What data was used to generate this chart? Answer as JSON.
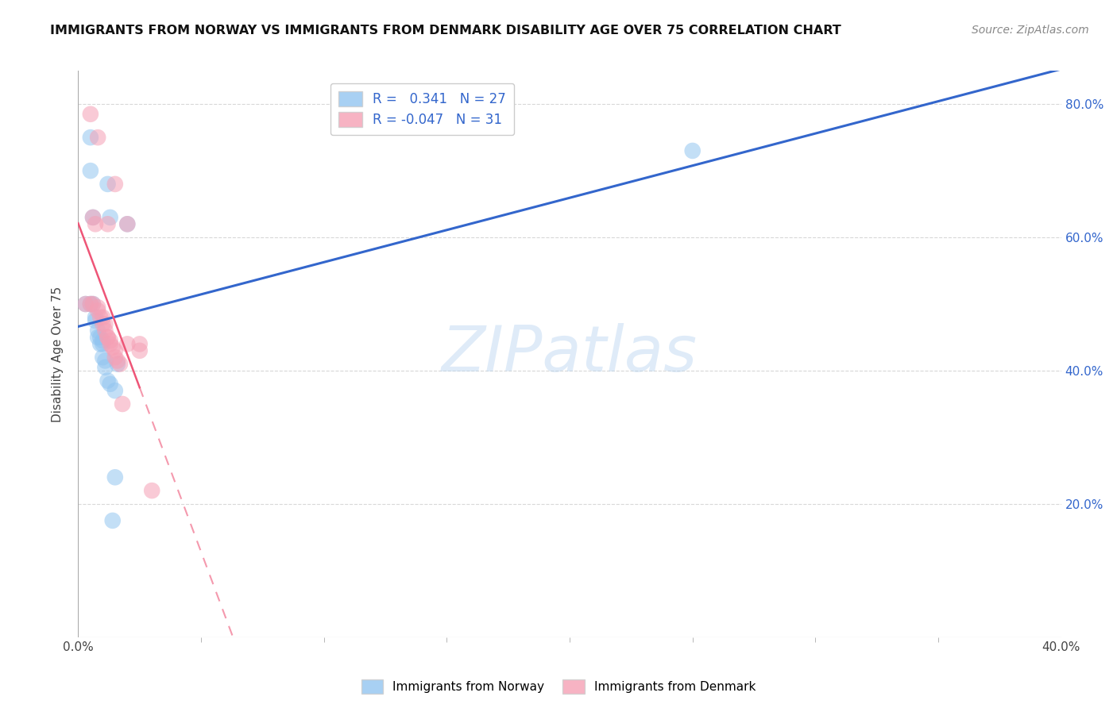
{
  "title": "IMMIGRANTS FROM NORWAY VS IMMIGRANTS FROM DENMARK DISABILITY AGE OVER 75 CORRELATION CHART",
  "source": "Source: ZipAtlas.com",
  "ylabel": "Disability Age Over 75",
  "xlim": [
    0.0,
    0.4
  ],
  "ylim": [
    0.0,
    0.85
  ],
  "xtick_labels": [
    "0.0%",
    "40.0%"
  ],
  "xtick_vals": [
    0.0,
    0.4
  ],
  "ytick_vals": [
    0.2,
    0.4,
    0.6,
    0.8
  ],
  "ytick_labels_right": [
    "20.0%",
    "40.0%",
    "60.0%",
    "80.0%"
  ],
  "legend_blue_r": "0.341",
  "legend_blue_n": "27",
  "legend_pink_r": "-0.047",
  "legend_pink_n": "31",
  "norway_color": "#92c5f0",
  "denmark_color": "#f5a0b5",
  "norway_x": [
    0.003,
    0.005,
    0.005,
    0.006,
    0.006,
    0.007,
    0.007,
    0.008,
    0.008,
    0.009,
    0.009,
    0.01,
    0.01,
    0.01,
    0.011,
    0.011,
    0.012,
    0.012,
    0.013,
    0.013,
    0.014,
    0.015,
    0.015,
    0.016,
    0.02,
    0.25,
    0.005
  ],
  "norway_y": [
    0.5,
    0.75,
    0.7,
    0.63,
    0.5,
    0.48,
    0.475,
    0.46,
    0.45,
    0.45,
    0.44,
    0.445,
    0.44,
    0.42,
    0.415,
    0.405,
    0.68,
    0.385,
    0.63,
    0.38,
    0.175,
    0.37,
    0.24,
    0.41,
    0.62,
    0.73,
    0.5
  ],
  "denmark_x": [
    0.003,
    0.005,
    0.006,
    0.007,
    0.008,
    0.008,
    0.009,
    0.01,
    0.01,
    0.011,
    0.011,
    0.012,
    0.012,
    0.013,
    0.013,
    0.014,
    0.015,
    0.015,
    0.016,
    0.017,
    0.018,
    0.02,
    0.02,
    0.025,
    0.025,
    0.03,
    0.005,
    0.006,
    0.008,
    0.012,
    0.015
  ],
  "denmark_y": [
    0.5,
    0.785,
    0.63,
    0.62,
    0.495,
    0.49,
    0.48,
    0.48,
    0.47,
    0.47,
    0.46,
    0.45,
    0.45,
    0.445,
    0.44,
    0.435,
    0.43,
    0.42,
    0.415,
    0.41,
    0.35,
    0.44,
    0.62,
    0.44,
    0.43,
    0.22,
    0.5,
    0.5,
    0.75,
    0.62,
    0.68
  ],
  "watermark_text": "ZIPatlas",
  "watermark_zip": "ZIP",
  "background_color": "#ffffff",
  "grid_color": "#d8d8d8",
  "line_blue_color": "#3366cc",
  "line_pink_color": "#ee5577"
}
